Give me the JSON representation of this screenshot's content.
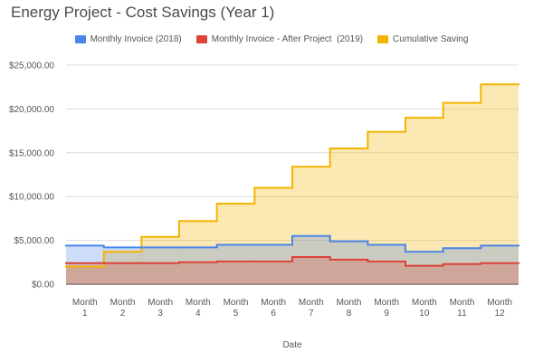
{
  "chart_data": {
    "type": "area",
    "step": true,
    "title": "Energy Project - Cost Savings (Year 1)",
    "xlabel": "Date",
    "ylabel": "",
    "ylim": [
      0,
      25000
    ],
    "yticks": [
      "$0.00",
      "$5,000.00",
      "$10,000.00",
      "$15,000.00",
      "$20,000.00",
      "$25,000.00"
    ],
    "ytick_values": [
      0,
      5000,
      10000,
      15000,
      20000,
      25000
    ],
    "categories": [
      [
        "Month",
        "1"
      ],
      [
        "Month",
        "2"
      ],
      [
        "Month",
        "3"
      ],
      [
        "Month",
        "4"
      ],
      [
        "Month",
        "5"
      ],
      [
        "Month",
        "6"
      ],
      [
        "Month",
        "7"
      ],
      [
        "Month",
        "8"
      ],
      [
        "Month",
        "9"
      ],
      [
        "Month",
        "10"
      ],
      [
        "Month",
        "11"
      ],
      [
        "Month",
        "12"
      ]
    ],
    "grid": true,
    "legend_position": "top",
    "series": [
      {
        "name": "Monthly Invoice (2018)",
        "color": "#4a86e8",
        "values": [
          4400,
          4200,
          4200,
          4200,
          4500,
          4500,
          5500,
          4900,
          4500,
          3700,
          4100,
          4400
        ]
      },
      {
        "name": "Monthly Invoice - After Project  (2019)",
        "color": "#db4437",
        "values": [
          2400,
          2400,
          2400,
          2500,
          2600,
          2600,
          3100,
          2800,
          2600,
          2100,
          2300,
          2400
        ]
      },
      {
        "name": "Cumulative Saving",
        "color": "#f4b400",
        "values": [
          2000,
          3700,
          5400,
          7200,
          9200,
          11000,
          13400,
          15500,
          17400,
          19000,
          20700,
          22800
        ]
      }
    ]
  }
}
